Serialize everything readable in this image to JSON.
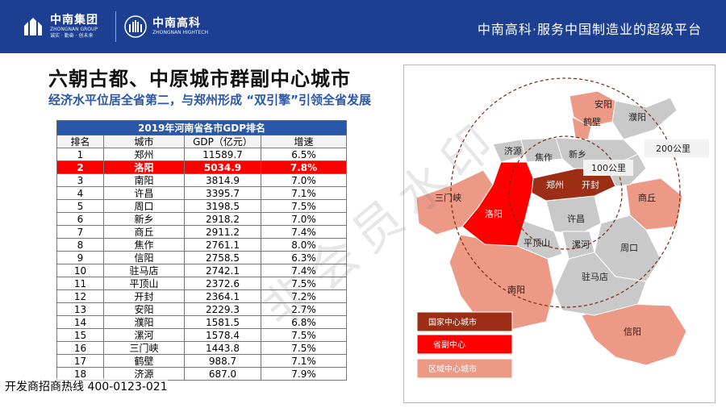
{
  "header": {
    "group_logo_name": "中南集团",
    "group_logo_en": "ZHONGNAN GROUP",
    "group_logo_tag": "诚实 · 勤奋 · 创未来",
    "tech_logo_name": "中南高科",
    "tech_logo_en": "ZHONGNAN HIGHTECH",
    "slogan": "中南高科·服务中国制造业的超级平台"
  },
  "page": {
    "title": "六朝古都、中原城市群副中心城市",
    "subtitle": "经济水平位居全省第二，与郑州形成 “双引擎”引领全省发展",
    "watermark": "非会员水印",
    "hotline": "开发商招商热线 400-0123-021"
  },
  "table": {
    "caption": "2019年河南省各市GDP排名",
    "columns": [
      "排名",
      "城市",
      "GDP（亿元）",
      "增速"
    ],
    "rows": [
      [
        "1",
        "郑州",
        "11589.7",
        "6.5%"
      ],
      [
        "2",
        "洛阳",
        "5034.9",
        "7.8%"
      ],
      [
        "3",
        "南阳",
        "3814.9",
        "7.0%"
      ],
      [
        "4",
        "许昌",
        "3395.7",
        "7.1%"
      ],
      [
        "5",
        "周口",
        "3198.5",
        "7.5%"
      ],
      [
        "6",
        "新乡",
        "2918.2",
        "7.0%"
      ],
      [
        "7",
        "商丘",
        "2911.2",
        "7.4%"
      ],
      [
        "8",
        "焦作",
        "2761.1",
        "8.0%"
      ],
      [
        "9",
        "信阳",
        "2758.5",
        "6.3%"
      ],
      [
        "10",
        "驻马店",
        "2742.1",
        "7.4%"
      ],
      [
        "11",
        "平顶山",
        "2372.6",
        "7.5%"
      ],
      [
        "12",
        "开封",
        "2364.1",
        "7.2%"
      ],
      [
        "13",
        "安阳",
        "2229.3",
        "2.7%"
      ],
      [
        "14",
        "濮阳",
        "1581.5",
        "6.8%"
      ],
      [
        "15",
        "漯河",
        "1578.4",
        "7.5%"
      ],
      [
        "16",
        "三门峡",
        "1443.8",
        "7.5%"
      ],
      [
        "17",
        "鹤壁",
        "988.7",
        "7.1%"
      ],
      [
        "18",
        "济源",
        "687.0",
        "7.9%"
      ]
    ],
    "highlight_row": 1
  },
  "map": {
    "cities": {
      "anyang": "安阳",
      "hebi": "鹤壁",
      "puyang": "濮阳",
      "jiyuan": "济源",
      "jiaozuo": "焦作",
      "xinxiang": "新乡",
      "sanmenxia": "三门峡",
      "luoyang": "洛阳",
      "zhengzhou": "郑州",
      "kaifeng": "开封",
      "shangqiu": "商丘",
      "xuchang": "许昌",
      "pingdingshan": "平顶山",
      "luohe": "漯河",
      "zhoukou": "周口",
      "nanyang": "南阳",
      "zhumadian": "驻马店",
      "xinyang": "信阳"
    },
    "ring_200": "200公里",
    "ring_100": "100公里",
    "legend": {
      "national": "国家中心城市",
      "sub": "省副中心",
      "regional": "区域中心城市"
    },
    "colors": {
      "national": "#9b2e14",
      "sub": "#ff0000",
      "regional": "#ec9986",
      "other": "#c9c9c9"
    }
  }
}
